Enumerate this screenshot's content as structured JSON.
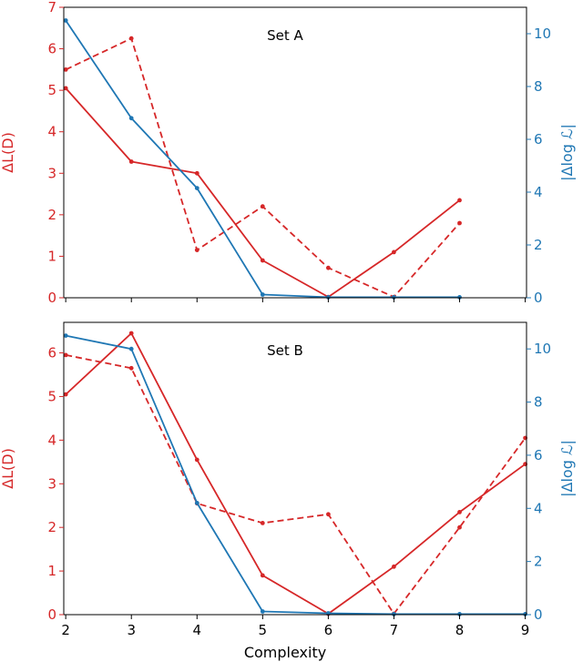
{
  "colors": {
    "left": "#d62728",
    "right": "#1f77b4",
    "axis": "#000000"
  },
  "xlabel": "Complexity",
  "ylabel_left": "ΔL(D)",
  "ylabel_right": "|Δlog ℒ|",
  "chart_data": [
    {
      "type": "line",
      "title": "Set A",
      "x_ticks": [
        "2",
        "3",
        "4",
        "5",
        "6",
        "7",
        "8",
        "9"
      ],
      "xlim": [
        1.97,
        9.02
      ],
      "left_axis": {
        "ylim": [
          0,
          7
        ],
        "ticks": [
          "0",
          "1",
          "2",
          "3",
          "4",
          "5",
          "6",
          "7"
        ]
      },
      "right_axis": {
        "ylim": [
          0,
          11.0
        ],
        "ticks": [
          "0",
          "2",
          "4",
          "6",
          "8",
          "10"
        ]
      },
      "series": [
        {
          "axis": "left",
          "style": "solid",
          "x": [
            2,
            3,
            4,
            5,
            6,
            7,
            8
          ],
          "values": [
            5.05,
            3.28,
            3.0,
            0.9,
            0.02,
            1.1,
            2.35
          ]
        },
        {
          "axis": "left",
          "style": "dashed",
          "x": [
            2,
            3,
            4,
            5,
            6,
            7,
            8
          ],
          "values": [
            5.5,
            6.25,
            1.15,
            2.2,
            0.72,
            0.02,
            1.8
          ]
        },
        {
          "axis": "right",
          "style": "solid",
          "x": [
            2,
            3,
            4,
            5,
            6,
            7,
            8
          ],
          "values": [
            10.5,
            6.8,
            4.15,
            0.12,
            0.02,
            0.02,
            0.02
          ]
        }
      ]
    },
    {
      "type": "line",
      "title": "Set B",
      "x_ticks": [
        "2",
        "3",
        "4",
        "5",
        "6",
        "7",
        "8",
        "9"
      ],
      "xlim": [
        1.97,
        9.02
      ],
      "left_axis": {
        "ylim": [
          0,
          6.7
        ],
        "ticks": [
          "0",
          "1",
          "2",
          "3",
          "4",
          "5",
          "6"
        ]
      },
      "right_axis": {
        "ylim": [
          0,
          11.0
        ],
        "ticks": [
          "0",
          "2",
          "4",
          "6",
          "8",
          "10"
        ]
      },
      "series": [
        {
          "axis": "left",
          "style": "solid",
          "x": [
            2,
            3,
            4,
            5,
            6,
            7,
            8,
            9
          ],
          "values": [
            5.05,
            6.45,
            3.55,
            0.9,
            0.02,
            1.1,
            2.35,
            3.45
          ]
        },
        {
          "axis": "left",
          "style": "dashed",
          "x": [
            2,
            3,
            4,
            5,
            6,
            7,
            8,
            9
          ],
          "values": [
            5.95,
            5.65,
            2.55,
            2.1,
            2.3,
            0.02,
            2.0,
            4.05
          ]
        },
        {
          "axis": "right",
          "style": "solid",
          "x": [
            2,
            3,
            4,
            5,
            6,
            7,
            8,
            9
          ],
          "values": [
            10.5,
            10.0,
            4.2,
            0.12,
            0.05,
            0.02,
            0.02,
            0.02
          ]
        }
      ]
    }
  ]
}
